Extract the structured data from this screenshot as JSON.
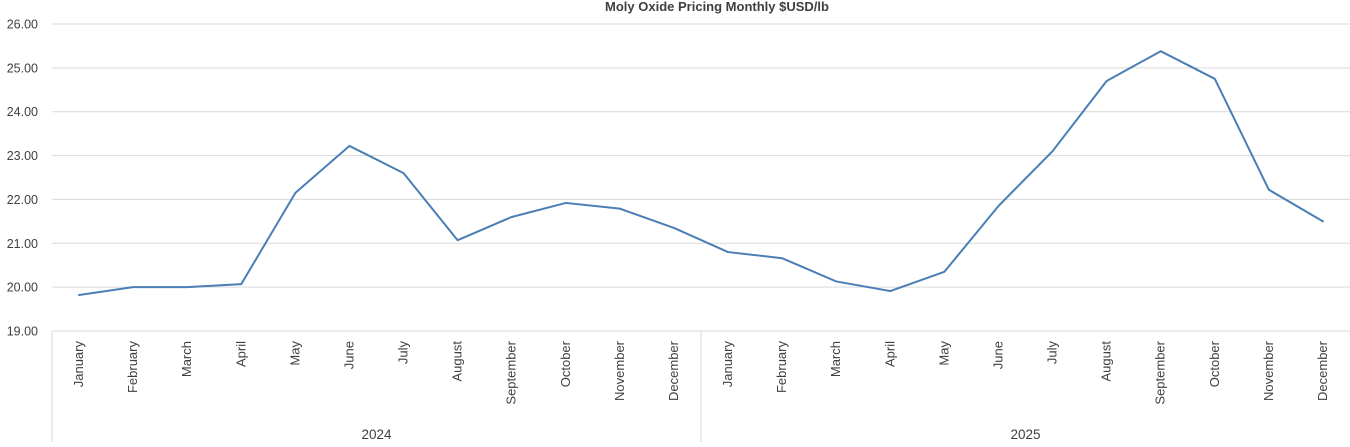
{
  "chart_data": {
    "type": "line",
    "title": "Moly Oxide Pricing Monthly $USD/lb",
    "xlabel": "",
    "ylabel": "",
    "ylim": [
      19,
      26
    ],
    "yticks": [
      "19.00",
      "20.00",
      "21.00",
      "22.00",
      "23.00",
      "24.00",
      "25.00",
      "26.00"
    ],
    "grid": true,
    "legend": "none",
    "groups": [
      {
        "label": "2024",
        "categories": [
          "January",
          "February",
          "March",
          "April",
          "May",
          "June",
          "July",
          "August",
          "September",
          "October",
          "November",
          "December"
        ]
      },
      {
        "label": "2025",
        "categories": [
          "January",
          "February",
          "March",
          "April",
          "May",
          "June",
          "July",
          "August",
          "September",
          "October",
          "November",
          "December"
        ]
      }
    ],
    "series": [
      {
        "color": "#4a7eb5",
        "values": [
          19.82,
          20.0,
          20.0,
          20.07,
          22.15,
          23.22,
          22.6,
          21.07,
          21.6,
          21.92,
          21.79,
          21.35,
          20.8,
          20.66,
          20.13,
          19.91,
          20.35,
          21.85,
          23.1,
          24.7,
          25.38,
          24.75,
          22.22,
          21.5
        ]
      }
    ]
  }
}
